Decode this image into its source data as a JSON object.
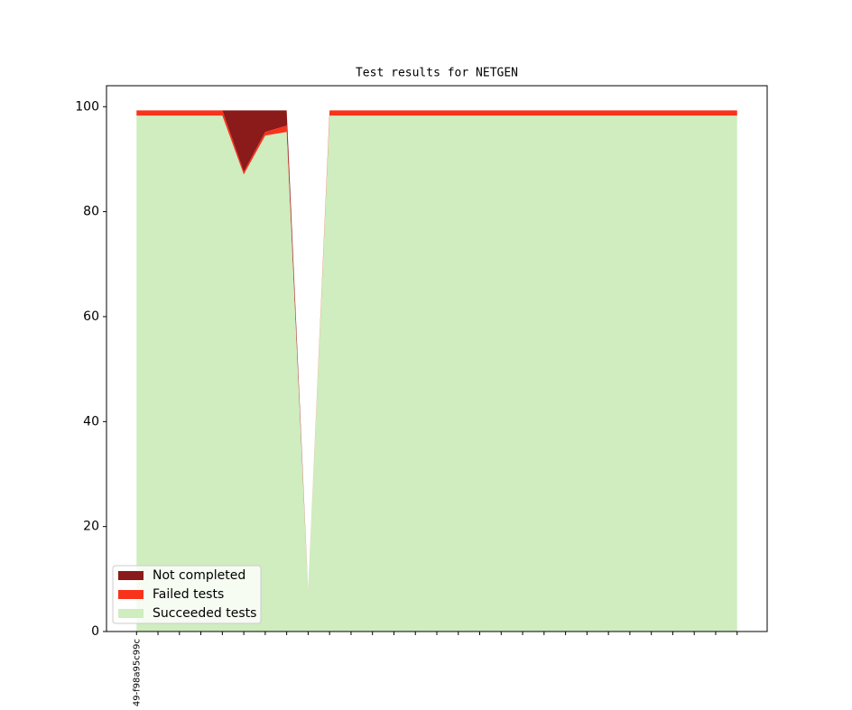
{
  "chart_data": {
    "type": "stacked-area",
    "title": "Test results for NETGEN",
    "categories": [
      "49-f98a95c99c",
      null,
      null,
      null,
      null,
      null,
      null,
      null,
      null,
      null,
      null,
      null,
      null,
      null,
      null,
      null,
      null,
      null,
      null,
      null,
      null,
      null,
      null,
      null,
      null,
      null,
      null,
      null,
      null
    ],
    "series": [
      {
        "name": "Not completed",
        "color": "#8b1a1a",
        "values": [
          0,
          0,
          0,
          0,
          0,
          11.7,
          4.1,
          2.9,
          0,
          0,
          0,
          0,
          0,
          0,
          0,
          0,
          0,
          0,
          0,
          0,
          0,
          0,
          0,
          0,
          0,
          0,
          0,
          0,
          0
        ]
      },
      {
        "name": "Failed tests",
        "color": "#f8331c",
        "values": [
          1.0,
          1.0,
          1.0,
          1.0,
          1.0,
          0.5,
          0.7,
          1.2,
          0.1,
          1.0,
          1.0,
          1.0,
          1.0,
          1.0,
          1.0,
          1.0,
          1.0,
          1.0,
          1.0,
          1.0,
          1.0,
          1.0,
          1.0,
          1.0,
          1.0,
          1.0,
          1.0,
          1.0,
          1.0
        ]
      },
      {
        "name": "Succeeded tests",
        "color": "#cfedbf",
        "values": [
          98.3,
          98.3,
          98.3,
          98.3,
          98.3,
          87.1,
          94.5,
          95.2,
          7.7,
          98.3,
          98.3,
          98.3,
          98.3,
          98.3,
          98.3,
          98.3,
          98.3,
          98.3,
          98.3,
          98.3,
          98.3,
          98.3,
          98.3,
          98.3,
          98.3,
          98.3,
          98.3,
          98.3,
          98.3
        ]
      }
    ],
    "xlim": [
      -1.4,
      29.4
    ],
    "ylim": [
      0,
      104
    ],
    "yticks": [
      0,
      20,
      40,
      60,
      80,
      100
    ],
    "grid": false,
    "legend": "lower left"
  }
}
